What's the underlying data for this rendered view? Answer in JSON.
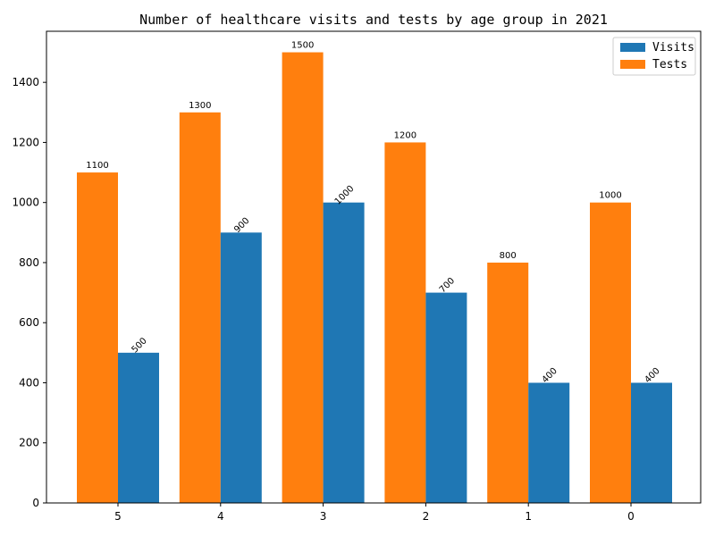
{
  "chart_data": {
    "type": "bar",
    "title": "Number of healthcare visits and tests by age group in 2021",
    "xlabel": "",
    "ylabel": "",
    "categories": [
      "5",
      "4",
      "3",
      "2",
      "1",
      "0"
    ],
    "series": [
      {
        "name": "Tests",
        "color": "#ff7f0e",
        "values": [
          1100,
          1300,
          1500,
          1200,
          800,
          1000
        ]
      },
      {
        "name": "Visits",
        "color": "#1f77b4",
        "values": [
          500,
          900,
          1000,
          700,
          400,
          400
        ]
      }
    ],
    "ylim": [
      0,
      1570
    ],
    "yticks": [
      0,
      200,
      400,
      600,
      800,
      1000,
      1200,
      1400
    ],
    "legend": {
      "position": "top-right",
      "order": [
        "Visits",
        "Tests"
      ]
    },
    "grid": false
  }
}
